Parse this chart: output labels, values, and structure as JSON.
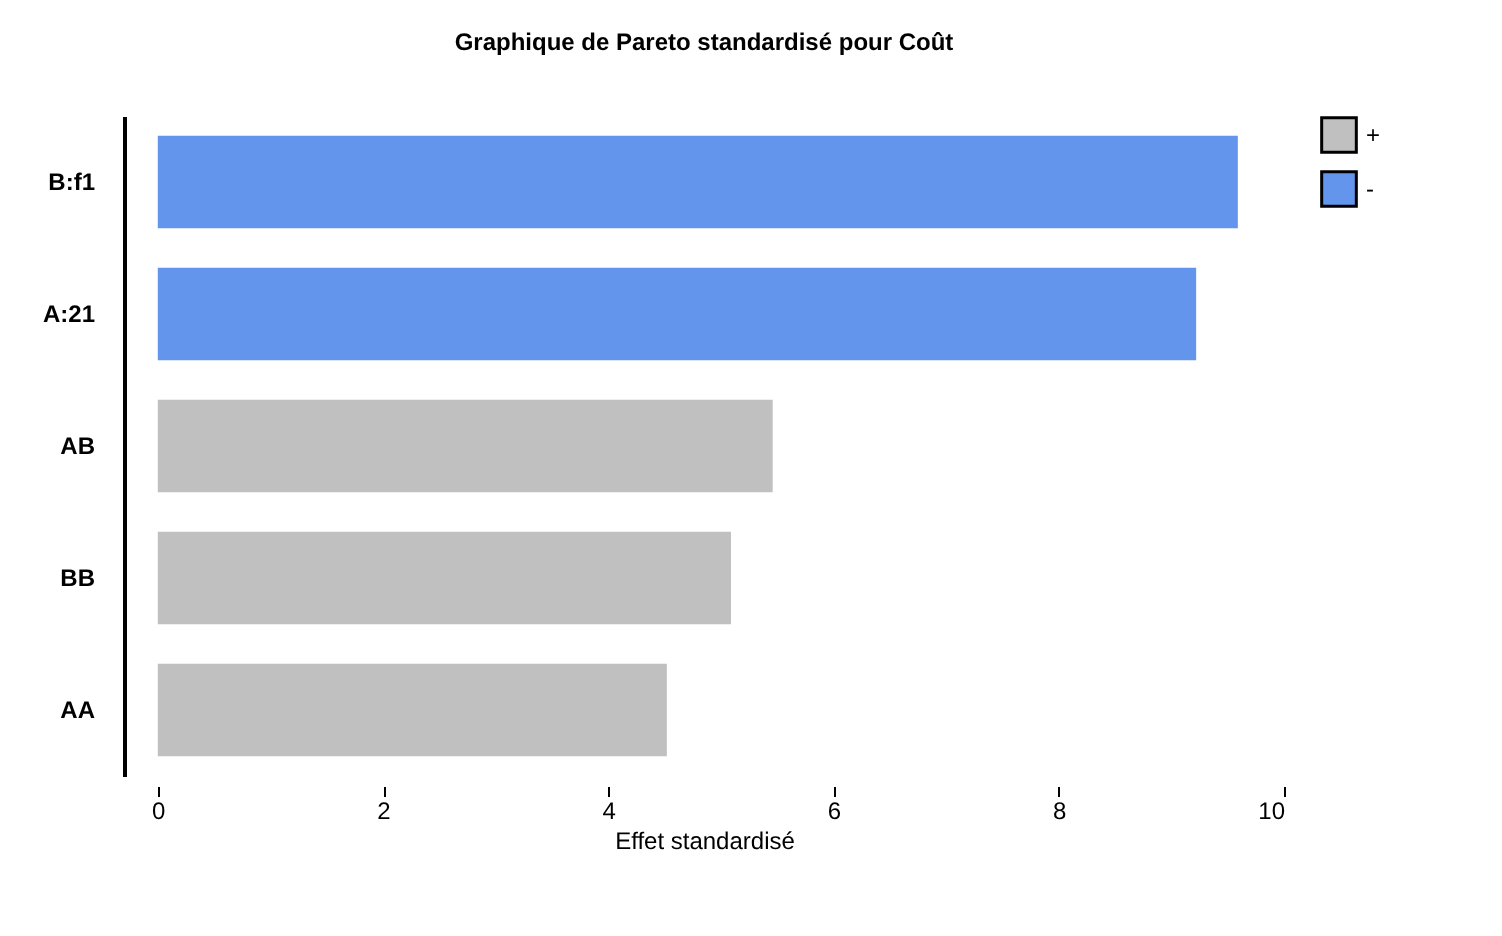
{
  "chart_data": {
    "type": "bar",
    "title": "Graphique de Pareto standardisé pour Coût",
    "xlabel": "Effet standardisé",
    "orientation": "horizontal",
    "categories": [
      "B:f1",
      "A:21",
      "AB",
      "BB",
      "AA"
    ],
    "series": [
      {
        "name": "+",
        "color": "#c0c0c0",
        "values": [
          null,
          null,
          5.46,
          5.09,
          4.52
        ]
      },
      {
        "name": "-",
        "color": "#6495ed",
        "values": [
          9.59,
          9.22,
          null,
          null,
          null
        ]
      }
    ],
    "xlim": [
      -0.3,
      10
    ],
    "xticks": [
      0,
      2,
      4,
      6,
      8,
      10
    ],
    "legend": "top right",
    "grid": false
  }
}
